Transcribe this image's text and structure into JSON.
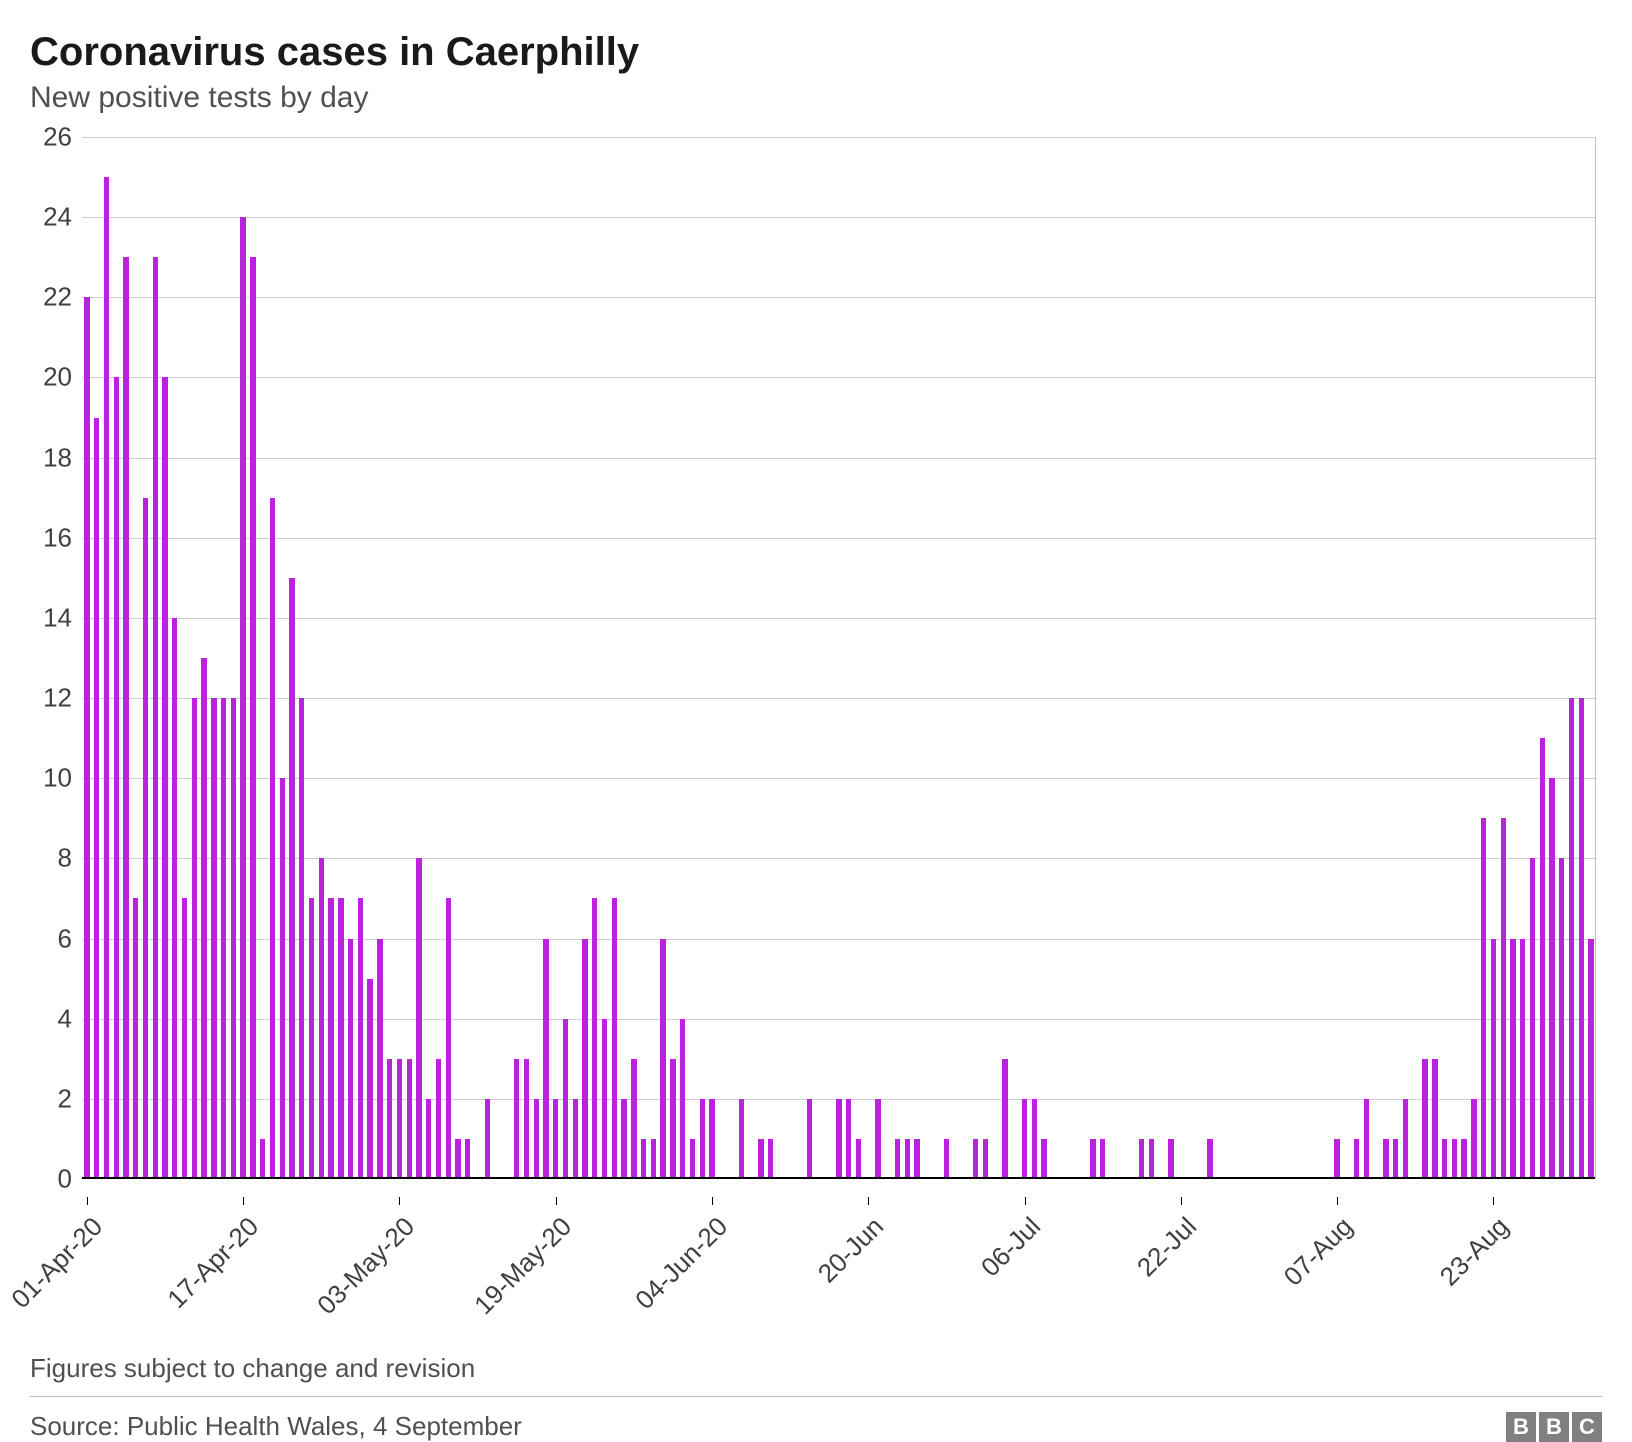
{
  "chart": {
    "type": "bar",
    "title": "Coronavirus cases in Caerphilly",
    "subtitle": "New positive tests by day",
    "note": "Figures subject to change and revision",
    "source": "Source: Public Health Wales, 4 September",
    "logo_letters": [
      "B",
      "B",
      "C"
    ],
    "title_fontsize": 40,
    "subtitle_fontsize": 30,
    "tick_fontsize": 26,
    "colors": {
      "bar": "#bb22dd",
      "background": "#ffffff",
      "gridline": "#cfcfcf",
      "axis": "#000000",
      "text": "#404040",
      "title": "#1a1a1a",
      "border_right": "#bfbfbf",
      "footer_rule": "#bfbfbf",
      "logo_bg": "#808080",
      "logo_fg": "#ffffff"
    },
    "y_axis": {
      "min": 0,
      "max": 26,
      "tick_step": 2,
      "ticks": [
        0,
        2,
        4,
        6,
        8,
        10,
        12,
        14,
        16,
        18,
        20,
        22,
        24,
        26
      ]
    },
    "x_axis": {
      "tick_indices": [
        0,
        16,
        32,
        48,
        64,
        80,
        96,
        112,
        128,
        144
      ],
      "tick_labels": [
        "01-Apr-20",
        "17-Apr-20",
        "03-May-20",
        "19-May-20",
        "04-Jun-20",
        "20-Jun",
        "06-Jul",
        "22-Jul",
        "07-Aug",
        "23-Aug"
      ]
    },
    "bar_width_ratio": 0.55,
    "values": [
      22,
      19,
      25,
      20,
      23,
      7,
      17,
      23,
      20,
      14,
      7,
      12,
      13,
      12,
      12,
      12,
      24,
      23,
      1,
      17,
      10,
      15,
      12,
      7,
      8,
      7,
      7,
      6,
      7,
      5,
      6,
      3,
      3,
      3,
      8,
      2,
      3,
      7,
      1,
      1,
      0,
      2,
      0,
      0,
      3,
      3,
      2,
      6,
      2,
      4,
      2,
      6,
      7,
      4,
      7,
      2,
      3,
      1,
      1,
      6,
      3,
      4,
      1,
      2,
      2,
      0,
      0,
      2,
      0,
      1,
      1,
      0,
      0,
      0,
      2,
      0,
      0,
      2,
      2,
      1,
      0,
      2,
      0,
      1,
      1,
      1,
      0,
      0,
      1,
      0,
      0,
      1,
      1,
      0,
      3,
      0,
      2,
      2,
      1,
      0,
      0,
      0,
      0,
      1,
      1,
      0,
      0,
      0,
      1,
      1,
      0,
      1,
      0,
      0,
      0,
      1,
      0,
      0,
      0,
      0,
      0,
      0,
      0,
      0,
      0,
      0,
      0,
      0,
      1,
      0,
      1,
      2,
      0,
      1,
      1,
      2,
      0,
      3,
      3,
      1,
      1,
      1,
      2,
      9,
      6,
      9,
      6,
      6,
      8,
      11,
      10,
      8,
      12,
      12,
      6
    ]
  }
}
